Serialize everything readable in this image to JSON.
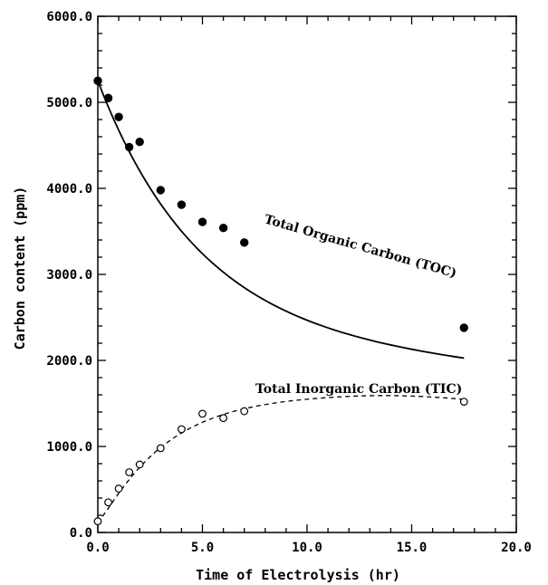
{
  "chart_data": {
    "type": "scatter",
    "xlabel": "Time of Electrolysis (hr)",
    "ylabel": "Carbon content (ppm)",
    "xlim": [
      0,
      20
    ],
    "ylim": [
      0,
      6000
    ],
    "xticks": [
      0,
      5,
      10,
      15,
      20
    ],
    "yticks": [
      0,
      1000,
      2000,
      3000,
      4000,
      5000,
      6000
    ],
    "xtick_labels": [
      "0.0",
      "5.0",
      "10.0",
      "15.0",
      "20.0"
    ],
    "ytick_labels": [
      "0.0",
      "1000.0",
      "2000.0",
      "3000.0",
      "4000.0",
      "5000.0",
      "6000.0"
    ],
    "grid": false,
    "series": [
      {
        "name": "Total Organic Carbon (TOC)",
        "marker": "filled-circle",
        "line": "solid",
        "x": [
          0.0,
          0.5,
          1.0,
          1.5,
          2.0,
          3.0,
          4.0,
          5.0,
          6.0,
          7.0,
          17.5
        ],
        "y": [
          5250,
          5050,
          4830,
          4480,
          4540,
          3980,
          3810,
          3610,
          3540,
          3370,
          2380
        ]
      },
      {
        "name": "Total Inorganic Carbon (TIC)",
        "marker": "open-circle",
        "line": "dashed",
        "x": [
          0.0,
          0.5,
          1.0,
          1.5,
          2.0,
          3.0,
          4.0,
          5.0,
          6.0,
          7.0,
          17.5
        ],
        "y": [
          130,
          350,
          510,
          700,
          790,
          980,
          1200,
          1380,
          1330,
          1410,
          1520
        ]
      }
    ],
    "colors": {
      "ink": "#000000",
      "background": "#ffffff"
    }
  }
}
